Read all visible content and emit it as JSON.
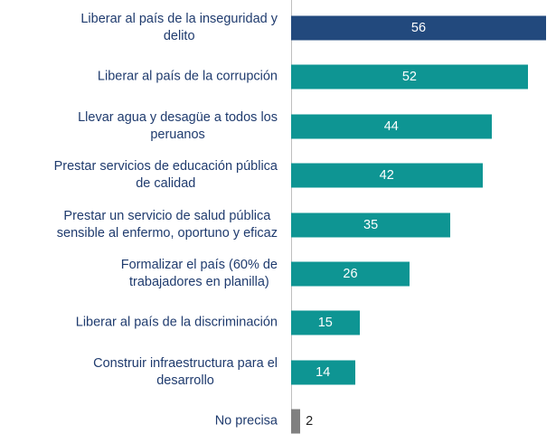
{
  "chart_data": {
    "type": "bar",
    "orientation": "horizontal",
    "categories": [
      "Liberar al país de la inseguridad y\ndelito",
      "Liberar al país de la corrupción",
      "Llevar agua y desagüe a todos los\nperuanos",
      "Prestar servicios de educación pública\nde calidad",
      "Prestar un servicio de salud pública\nsensible al enfermo, oportuno y eficaz",
      "Formalizar el país (60% de\ntrabajadores en planilla)",
      "Liberar al país de la discriminación",
      "Construir infraestructura para el\ndesarrollo",
      "No precisa"
    ],
    "values": [
      56,
      52,
      44,
      42,
      35,
      26,
      15,
      14,
      2
    ],
    "colors": [
      "#22497d",
      "#0e9593",
      "#0e9593",
      "#0e9593",
      "#0e9593",
      "#0e9593",
      "#0e9593",
      "#0e9593",
      "#808080"
    ]
  }
}
